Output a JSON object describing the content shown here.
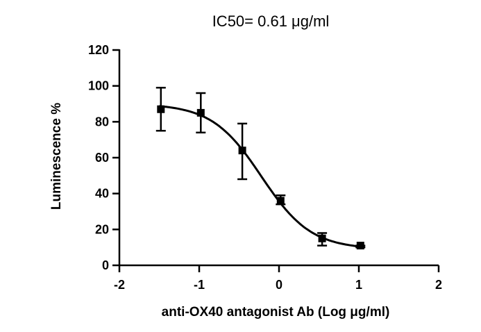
{
  "chart_data": {
    "type": "scatter",
    "title": "IC50= 0.61 μg/ml",
    "xlabel": "anti-OX40 antagonist Ab (Log μg/ml)",
    "ylabel": "Luminescence %",
    "xlim": [
      -2,
      2
    ],
    "ylim": [
      0,
      120
    ],
    "x_ticks": [
      -2,
      -1,
      0,
      1,
      2
    ],
    "y_ticks": [
      0,
      20,
      40,
      60,
      80,
      100,
      120
    ],
    "x_tick_labels": [
      "-2",
      "-1",
      "0",
      "1",
      "2"
    ],
    "y_tick_labels": [
      "0",
      "20",
      "40",
      "60",
      "80",
      "100",
      "120"
    ],
    "grid": false,
    "series": [
      {
        "marker": "square",
        "points": [
          {
            "x": -1.48,
            "y": 87,
            "err_low": 75,
            "err_high": 99
          },
          {
            "x": -0.98,
            "y": 85,
            "err_low": 74,
            "err_high": 96
          },
          {
            "x": -0.46,
            "y": 64,
            "err_low": 48,
            "err_high": 79
          },
          {
            "x": 0.02,
            "y": 36,
            "err_low": 34,
            "err_high": 39
          },
          {
            "x": 0.54,
            "y": 15,
            "err_low": 11,
            "err_high": 18
          },
          {
            "x": 1.02,
            "y": 11,
            "err_low": 10,
            "err_high": 11
          }
        ]
      }
    ],
    "fit_curve": {
      "model": "four-parameter logistic",
      "top": 90,
      "bottom": 9,
      "log_ic50": -0.22,
      "hill_slope": -1.4,
      "x_range": [
        -1.5,
        1.0
      ]
    },
    "colors": {
      "marks": "#000000",
      "background": "#ffffff"
    }
  }
}
